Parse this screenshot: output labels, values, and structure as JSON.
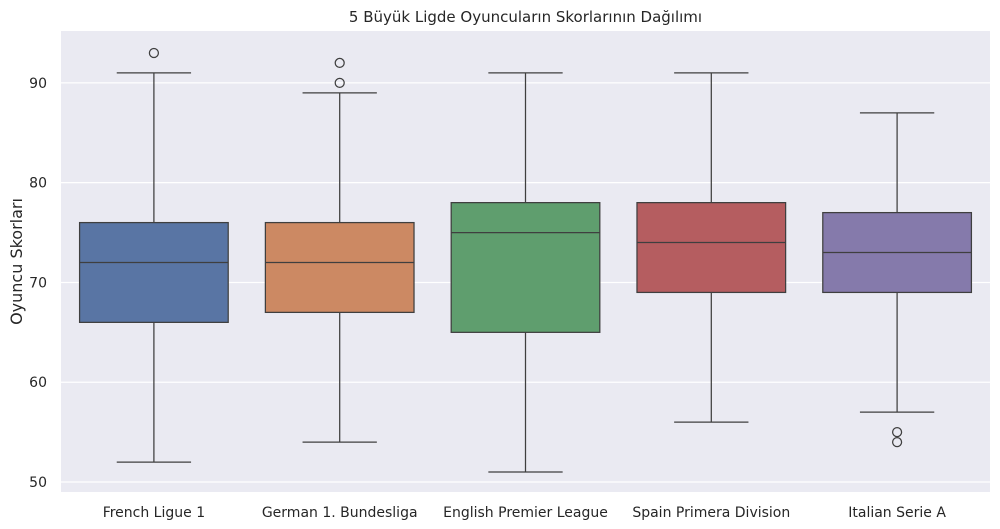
{
  "chart_data": {
    "type": "box",
    "title": "5 Büyük Ligde Oyuncuların Skorlarının Dağılımı",
    "xlabel": "",
    "ylabel": "Oyuncu Skorları",
    "ylim": [
      49.0,
      95.2
    ],
    "yticks": [
      50,
      60,
      70,
      80,
      90
    ],
    "grid": true,
    "background": "#eaeaf2",
    "categories": [
      "French Ligue 1",
      "German 1. Bundesliga",
      "English Premier League",
      "Spain Primera Division",
      "Italian Serie A"
    ],
    "boxes": [
      {
        "category": "French Ligue 1",
        "whisker_low": 52,
        "q1": 66,
        "median": 72,
        "q3": 76,
        "whisker_high": 91,
        "outliers": [
          93
        ],
        "color": "#5975a4"
      },
      {
        "category": "German 1. Bundesliga",
        "whisker_low": 54,
        "q1": 67,
        "median": 72,
        "q3": 76,
        "whisker_high": 89,
        "outliers": [
          90,
          92
        ],
        "color": "#cc8963"
      },
      {
        "category": "English Premier League",
        "whisker_low": 51,
        "q1": 65,
        "median": 75,
        "q3": 78,
        "whisker_high": 91,
        "outliers": [],
        "color": "#5f9e6e"
      },
      {
        "category": "Spain Primera Division",
        "whisker_low": 56,
        "q1": 69,
        "median": 74,
        "q3": 78,
        "whisker_high": 91,
        "outliers": [],
        "color": "#b55d60"
      },
      {
        "category": "Italian Serie A",
        "whisker_low": 57,
        "q1": 69,
        "median": 73,
        "q3": 77,
        "whisker_high": 87,
        "outliers": [
          54,
          55
        ],
        "color": "#857aab"
      }
    ]
  }
}
